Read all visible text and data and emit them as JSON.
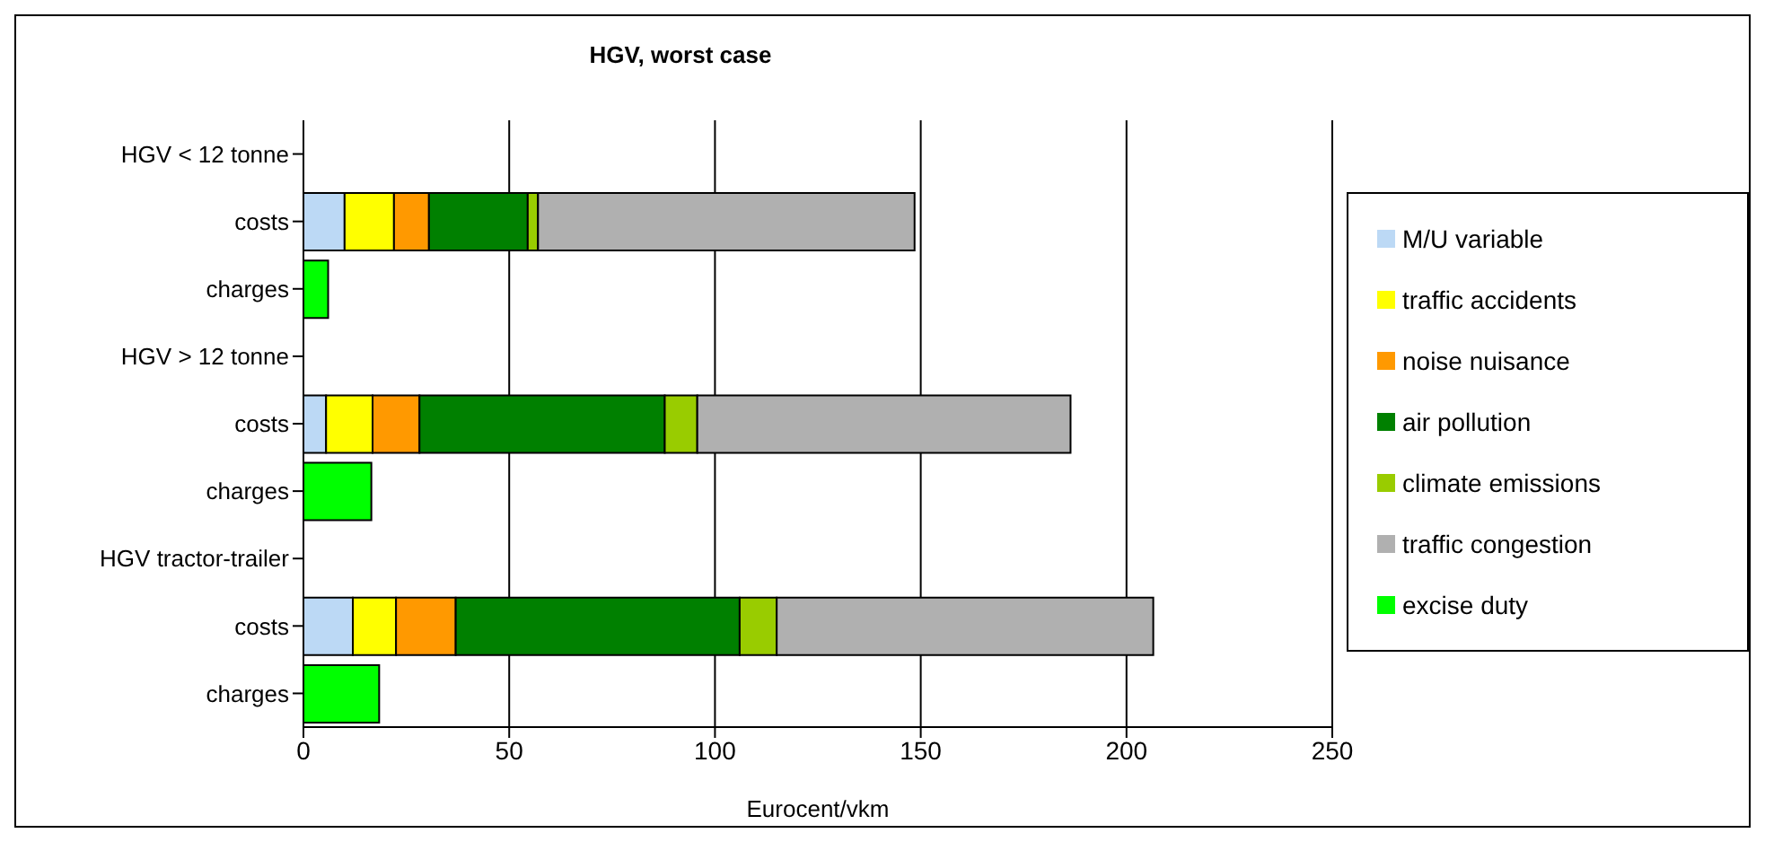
{
  "chart_data": {
    "type": "bar",
    "orientation": "horizontal",
    "stacked": true,
    "title": "HGV, worst case",
    "xlabel": "Eurocent/vkm",
    "categories": [
      "HGV < 12 tonne",
      "costs",
      "charges",
      "HGV > 12 tonne",
      "costs",
      "charges",
      "HGV tractor-trailer",
      "costs",
      "charges"
    ],
    "series": [
      {
        "name": "M/U variable",
        "color": "#bcd9f5",
        "values": [
          null,
          10,
          null,
          null,
          5.5,
          null,
          null,
          12,
          null
        ]
      },
      {
        "name": "traffic accidents",
        "color": "#ffff00",
        "values": [
          null,
          12,
          null,
          null,
          11.3,
          null,
          null,
          10.5,
          null
        ]
      },
      {
        "name": "noise nuisance",
        "color": "#ff9900",
        "values": [
          null,
          8.5,
          null,
          null,
          11.4,
          null,
          null,
          14.5,
          null
        ]
      },
      {
        "name": "air pollution",
        "color": "#008000",
        "values": [
          null,
          24,
          null,
          null,
          59.6,
          null,
          null,
          69,
          null
        ]
      },
      {
        "name": "climate emissions",
        "color": "#99cc00",
        "values": [
          null,
          2.5,
          null,
          null,
          7.9,
          null,
          null,
          9,
          null
        ]
      },
      {
        "name": "traffic congestion",
        "color": "#b0b0b0",
        "values": [
          null,
          91.5,
          null,
          null,
          90.7,
          null,
          null,
          91.5,
          null
        ]
      },
      {
        "name": "excise duty",
        "color": "#00ff00",
        "values": [
          null,
          null,
          6,
          null,
          null,
          16.5,
          null,
          null,
          18.4
        ]
      }
    ],
    "xlim": [
      0,
      250
    ],
    "xticks": [
      0,
      50,
      100,
      150,
      200,
      250
    ],
    "grid": "x",
    "legend": "right"
  }
}
